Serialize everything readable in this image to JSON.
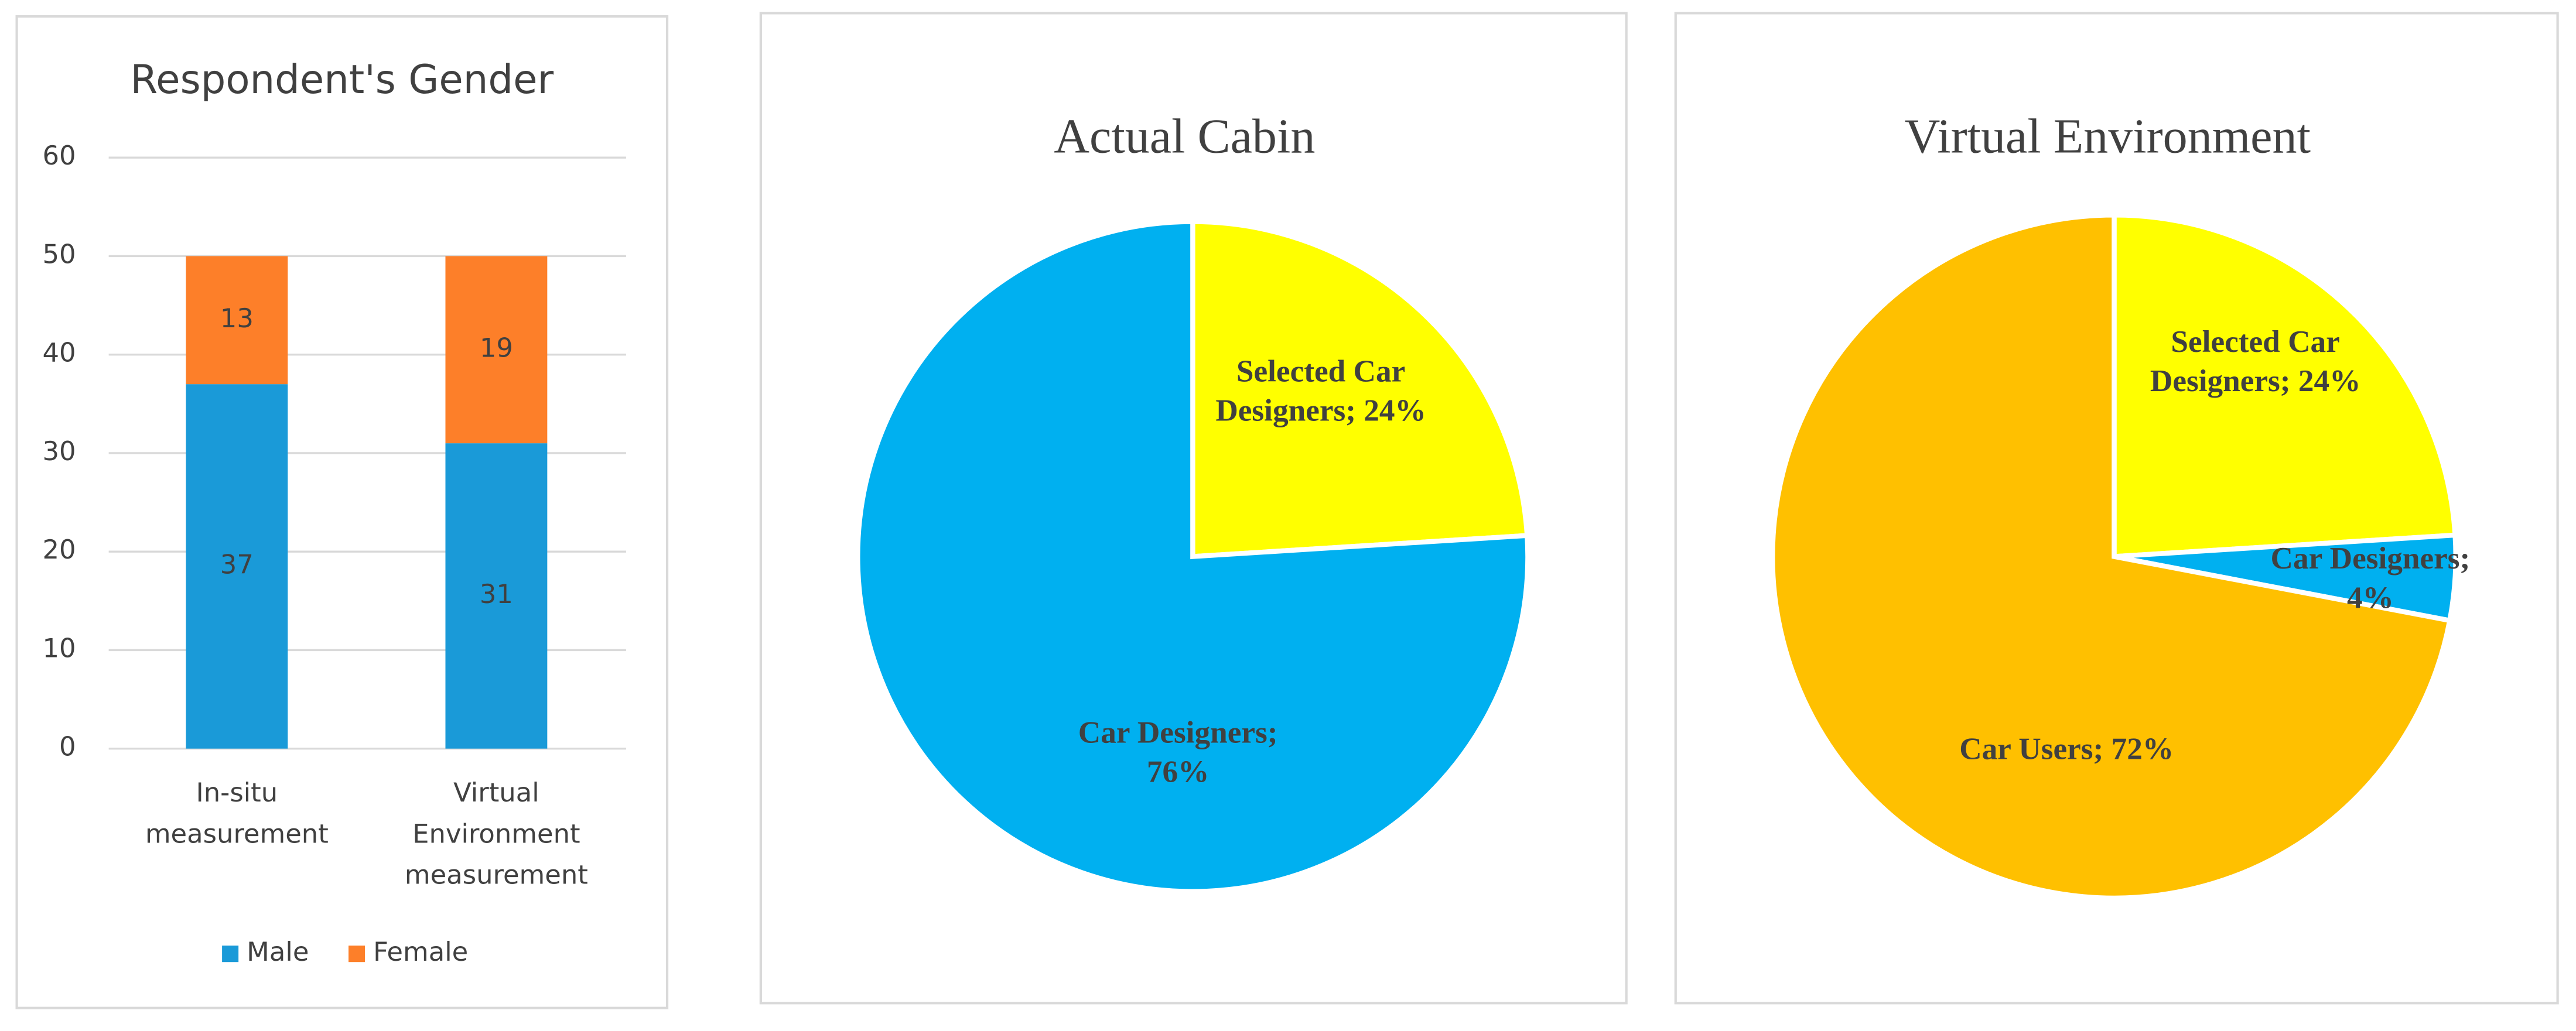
{
  "chart_data": [
    {
      "type": "stacked_bar",
      "title": "Respondent's Gender",
      "categories": [
        "In-situ measurement",
        "Virtual Environment measurement"
      ],
      "series": [
        {
          "name": "Male",
          "color": "#1a9ad8",
          "values": [
            37,
            31
          ]
        },
        {
          "name": "Female",
          "color": "#fd7f29",
          "values": [
            13,
            19
          ]
        }
      ],
      "ylim": [
        0,
        60
      ],
      "yticks": [
        0,
        10,
        20,
        30,
        40,
        50,
        60
      ],
      "grid": true,
      "legend": "bottom"
    },
    {
      "type": "pie",
      "title": "Actual Cabin",
      "values": [
        24,
        76
      ],
      "value_labels": [
        "Selected Car Designers; 24%",
        "Car Designers; 76%"
      ],
      "colors": [
        "#ffff00",
        "#00b0f0"
      ]
    },
    {
      "type": "pie",
      "title": "Virtual Environment",
      "values": [
        24,
        4,
        72
      ],
      "value_labels": [
        "Selected Car Designers; 24%",
        "Car Designers; 4%",
        "Car Users; 72%"
      ],
      "colors": [
        "#ffff00",
        "#00b0f0",
        "#ffc000"
      ]
    }
  ]
}
